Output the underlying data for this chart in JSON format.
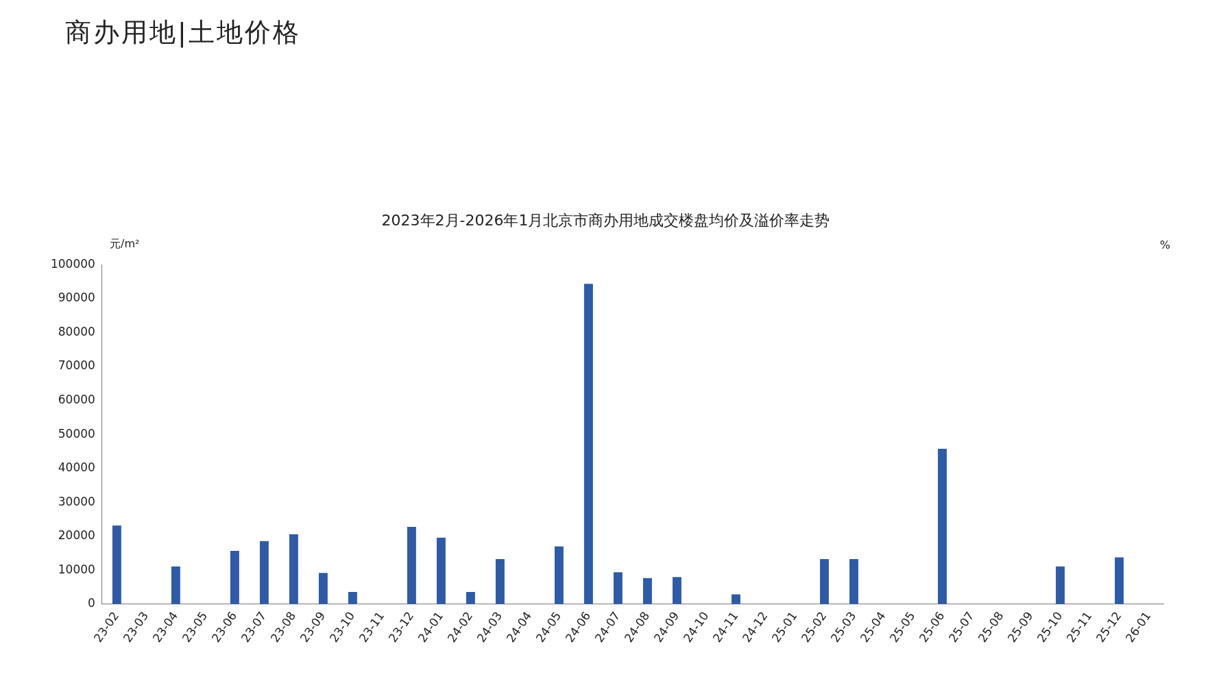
{
  "chart_data": {
    "type": "bar",
    "title": "2023年2月-2026年1月北京市商办用地成交楼盘均价及溢价率走势",
    "annotations": [
      "商办用地|土地价格"
    ],
    "ylabel": "元/m²",
    "y2label": "%",
    "categories": [
      "23-02",
      "23-03",
      "23-04",
      "23-05",
      "23-06",
      "23-07",
      "23-08",
      "23-09",
      "23-10",
      "23-11",
      "23-12",
      "24-01",
      "24-02",
      "24-03",
      "24-04",
      "24-05",
      "24-06",
      "24-07",
      "24-08",
      "24-09",
      "24-10",
      "24-11",
      "24-12",
      "25-01",
      "25-02",
      "25-03",
      "25-04",
      "25-05",
      "25-06",
      "25-07",
      "25-08",
      "25-09",
      "25-10",
      "25-11",
      "25-12",
      "26-01"
    ],
    "values": [
      23200,
      null,
      11100,
      null,
      15700,
      18600,
      20600,
      9200,
      3600,
      null,
      22800,
      19600,
      3600,
      13300,
      null,
      17000,
      94400,
      9400,
      7700,
      8000,
      null,
      2900,
      null,
      null,
      13300,
      13300,
      null,
      null,
      45800,
      null,
      null,
      null,
      11100,
      null,
      13800,
      null
    ],
    "color": "#2e5ba8",
    "ylim": [
      0,
      100000
    ],
    "yticks": [
      0,
      10000,
      20000,
      30000,
      40000,
      50000,
      60000,
      70000,
      80000,
      90000,
      100000
    ],
    "grid": false,
    "legend": false
  }
}
